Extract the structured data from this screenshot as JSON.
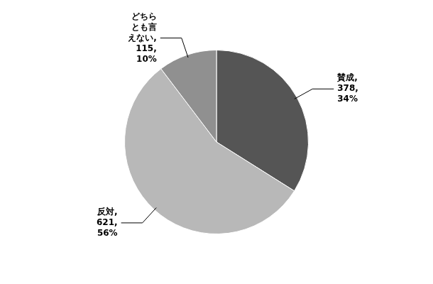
{
  "chart_data": {
    "type": "pie",
    "values": [
      378,
      621,
      115
    ],
    "value_labels": [
      "賛成,\n378,\n34%",
      "反対,\n621,\n56%",
      "どちら\nとも言\nえない,\n115,\n10%"
    ],
    "colors": [
      "#555555",
      "#b8b8b8",
      "#909090"
    ],
    "data_labels": true
  }
}
